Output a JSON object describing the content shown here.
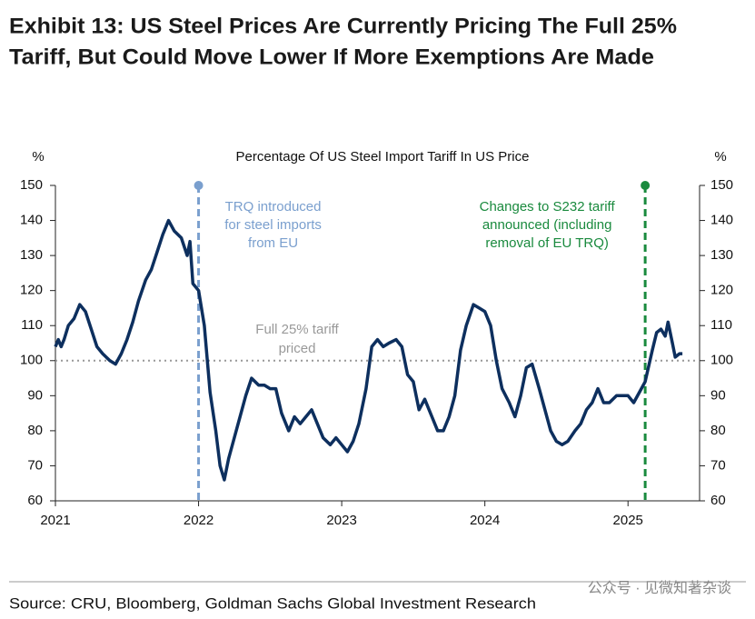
{
  "chart_data": {
    "type": "line",
    "title": [
      "Exhibit 13: US Steel Prices Are Currently Pricing The Full 25%",
      "Tariff, But Could Move Lower If More Exemptions Are Made"
    ],
    "subtitle": "Percentage Of US Steel Import Tariff In US Price",
    "y_label": "%",
    "y2_label": "%",
    "color": "#0d2f5e",
    "x": [
      2021.0,
      2021.02,
      2021.04,
      2021.06,
      2021.09,
      2021.13,
      2021.17,
      2021.21,
      2021.25,
      2021.29,
      2021.33,
      2021.38,
      2021.42,
      2021.46,
      2021.5,
      2021.54,
      2021.58,
      2021.63,
      2021.67,
      2021.71,
      2021.75,
      2021.79,
      2021.83,
      2021.88,
      2021.92,
      2021.94,
      2021.96,
      2022.0,
      2022.04,
      2022.08,
      2022.12,
      2022.15,
      2022.18,
      2022.21,
      2022.25,
      2022.29,
      2022.33,
      2022.37,
      2022.42,
      2022.46,
      2022.5,
      2022.54,
      2022.58,
      2022.63,
      2022.67,
      2022.71,
      2022.75,
      2022.79,
      2022.83,
      2022.87,
      2022.92,
      2022.96,
      2023.0,
      2023.04,
      2023.08,
      2023.12,
      2023.17,
      2023.21,
      2023.25,
      2023.29,
      2023.33,
      2023.38,
      2023.42,
      2023.46,
      2023.5,
      2023.54,
      2023.58,
      2023.63,
      2023.67,
      2023.71,
      2023.75,
      2023.79,
      2023.83,
      2023.87,
      2023.92,
      2023.96,
      2024.0,
      2024.04,
      2024.08,
      2024.12,
      2024.17,
      2024.21,
      2024.25,
      2024.29,
      2024.33,
      2024.38,
      2024.42,
      2024.46,
      2024.5,
      2024.54,
      2024.58,
      2024.63,
      2024.67,
      2024.71,
      2024.75,
      2024.79,
      2024.83,
      2024.87,
      2024.92,
      2024.96,
      2025.0,
      2025.04,
      2025.08,
      2025.12,
      2025.17,
      2025.2,
      2025.23,
      2025.26,
      2025.28,
      2025.31,
      2025.33,
      2025.36,
      2025.38
    ],
    "values": [
      104,
      106,
      104,
      106,
      110,
      112,
      116,
      114,
      109,
      104,
      102,
      100,
      99,
      102,
      106,
      111,
      117,
      123,
      126,
      131,
      136,
      140,
      137,
      135,
      130,
      134,
      122,
      120,
      110,
      91,
      80,
      70,
      66,
      72,
      78,
      84,
      90,
      95,
      93,
      93,
      92,
      92,
      85,
      80,
      84,
      82,
      84,
      86,
      82,
      78,
      76,
      78,
      76,
      74,
      77,
      82,
      92,
      104,
      106,
      104,
      105,
      106,
      104,
      96,
      94,
      86,
      89,
      84,
      80,
      80,
      84,
      90,
      103,
      110,
      116,
      115,
      114,
      110,
      100,
      92,
      88,
      84,
      90,
      98,
      99,
      92,
      86,
      80,
      77,
      76,
      77,
      80,
      82,
      86,
      88,
      92,
      88,
      88,
      90,
      90,
      90,
      88,
      91,
      94,
      103,
      108,
      109,
      107,
      111,
      105,
      101,
      102,
      102
    ],
    "xlim": [
      2021,
      2025.5
    ],
    "xticks": [
      2021,
      2022,
      2023,
      2024,
      2025
    ],
    "ylim": [
      60,
      150
    ],
    "yticks": [
      60,
      70,
      80,
      90,
      100,
      110,
      120,
      130,
      140,
      150
    ],
    "y2lim": [
      60,
      150
    ],
    "y2ticks": [
      60,
      70,
      80,
      90,
      100,
      110,
      120,
      130,
      140,
      150
    ],
    "reference_line": {
      "y": 100,
      "label": [
        "Full 25% tariff",
        "priced"
      ]
    },
    "events": [
      {
        "x": 2022.0,
        "color": "#7a9fce",
        "label": [
          "TRQ introduced",
          "for steel imports",
          "from EU"
        ]
      },
      {
        "x": 2025.12,
        "color": "#1a8a3e",
        "label": [
          "Changes to S232 tariff",
          "announced (including",
          "removal of EU TRQ)"
        ]
      }
    ],
    "source": "Source: CRU, Bloomberg, Goldman Sachs Global Investment Research",
    "watermark": "公众号 · 见微知著杂谈"
  }
}
